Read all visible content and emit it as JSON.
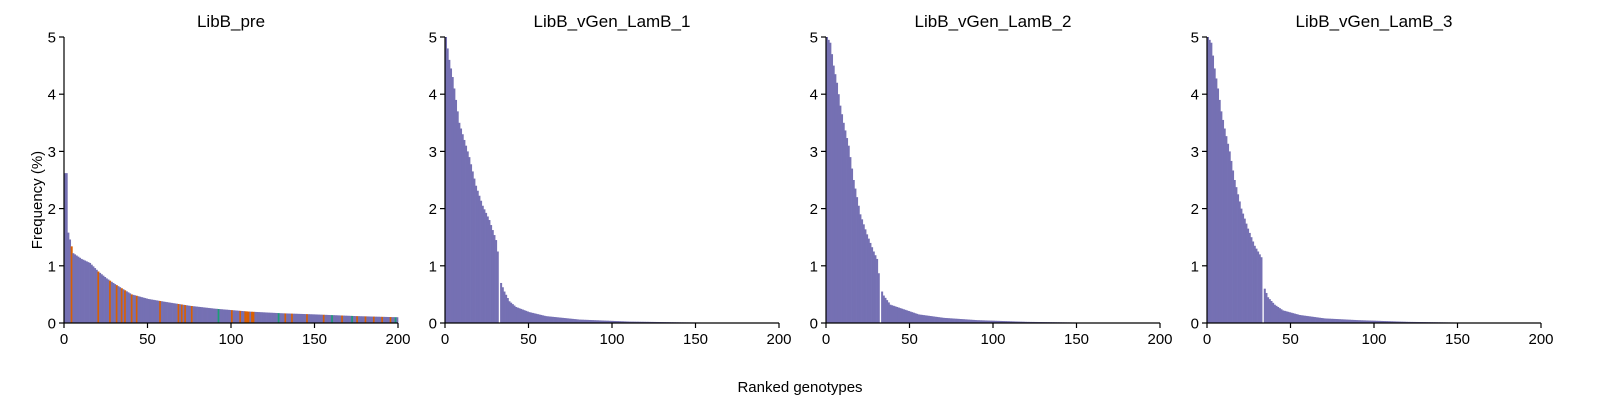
{
  "figure": {
    "xlabel": "Ranked genotypes",
    "ylabel": "Frequency (%)"
  },
  "colors": {
    "primary": "#7570b3",
    "orange": "#d95f02",
    "teal": "#1b9e77",
    "axis": "#000000"
  },
  "chart_data": [
    {
      "type": "bar",
      "title": "LibB_pre",
      "xlim": [
        0,
        200
      ],
      "ylim": [
        0,
        5
      ],
      "xticks": [
        0,
        50,
        100,
        150,
        200
      ],
      "yticks": [
        0,
        1,
        2,
        3,
        4,
        5
      ],
      "grid": false,
      "profile": [
        [
          0,
          2.62
        ],
        [
          1,
          2.62
        ],
        [
          2,
          1.58
        ],
        [
          5,
          1.22
        ],
        [
          10,
          1.12
        ],
        [
          15,
          1.05
        ],
        [
          20,
          0.9
        ],
        [
          25,
          0.78
        ],
        [
          30,
          0.68
        ],
        [
          40,
          0.5
        ],
        [
          50,
          0.42
        ],
        [
          60,
          0.37
        ],
        [
          75,
          0.3
        ],
        [
          90,
          0.25
        ],
        [
          110,
          0.2
        ],
        [
          130,
          0.17
        ],
        [
          150,
          0.15
        ],
        [
          175,
          0.12
        ],
        [
          200,
          0.1
        ]
      ],
      "highlights": [
        {
          "color": "orange",
          "ranks": [
            4,
            20,
            27,
            31,
            34,
            36,
            40,
            43,
            57,
            68,
            70,
            72,
            76,
            100,
            105,
            108,
            109,
            110,
            112,
            113,
            132,
            136,
            145,
            155,
            166,
            175,
            180,
            185,
            190,
            195
          ]
        },
        {
          "color": "teal",
          "ranks": [
            92,
            128,
            160,
            172,
            198
          ]
        }
      ]
    },
    {
      "type": "bar",
      "title": "LibB_vGen_LamB_1",
      "xlim": [
        0,
        200
      ],
      "ylim": [
        0,
        5
      ],
      "xticks": [
        0,
        50,
        100,
        150,
        200
      ],
      "yticks": [
        0,
        1,
        2,
        3,
        4,
        5
      ],
      "grid": false,
      "profile": [
        [
          0,
          5.0
        ],
        [
          2,
          4.6
        ],
        [
          4,
          4.3
        ],
        [
          6,
          3.9
        ],
        [
          8,
          3.5
        ],
        [
          10,
          3.3
        ],
        [
          14,
          2.9
        ],
        [
          18,
          2.4
        ],
        [
          22,
          2.05
        ],
        [
          26,
          1.8
        ],
        [
          30,
          1.45
        ],
        [
          32,
          1.05
        ],
        [
          33,
          0.7
        ],
        [
          35,
          0.55
        ],
        [
          38,
          0.38
        ],
        [
          42,
          0.28
        ],
        [
          50,
          0.19
        ],
        [
          60,
          0.12
        ],
        [
          80,
          0.06
        ],
        [
          110,
          0.025
        ],
        [
          140,
          0.012
        ],
        [
          156,
          0.008
        ],
        [
          157,
          0.0
        ],
        [
          200,
          0.0
        ]
      ],
      "gaps": [
        32
      ]
    },
    {
      "type": "bar",
      "title": "LibB_vGen_LamB_2",
      "xlim": [
        0,
        200
      ],
      "ylim": [
        0,
        5
      ],
      "xticks": [
        0,
        50,
        100,
        150,
        200
      ],
      "yticks": [
        0,
        1,
        2,
        3,
        4,
        5
      ],
      "grid": false,
      "profile": [
        [
          0,
          5.0
        ],
        [
          2,
          4.9
        ],
        [
          4,
          4.5
        ],
        [
          6,
          4.2
        ],
        [
          8,
          3.8
        ],
        [
          10,
          3.5
        ],
        [
          13,
          3.1
        ],
        [
          16,
          2.5
        ],
        [
          20,
          1.9
        ],
        [
          24,
          1.55
        ],
        [
          28,
          1.25
        ],
        [
          30,
          1.12
        ],
        [
          32,
          0.62
        ],
        [
          34,
          0.48
        ],
        [
          38,
          0.32
        ],
        [
          45,
          0.25
        ],
        [
          55,
          0.15
        ],
        [
          70,
          0.09
        ],
        [
          90,
          0.05
        ],
        [
          120,
          0.02
        ],
        [
          152,
          0.008
        ],
        [
          153,
          0.0
        ],
        [
          200,
          0.0
        ]
      ],
      "gaps": [
        32
      ]
    },
    {
      "type": "bar",
      "title": "LibB_vGen_LamB_3",
      "xlim": [
        0,
        200
      ],
      "ylim": [
        0,
        5
      ],
      "xticks": [
        0,
        50,
        100,
        150,
        200
      ],
      "yticks": [
        0,
        1,
        2,
        3,
        4,
        5
      ],
      "grid": false,
      "profile": [
        [
          0,
          5.0
        ],
        [
          2,
          4.9
        ],
        [
          4,
          4.45
        ],
        [
          6,
          4.1
        ],
        [
          8,
          3.7
        ],
        [
          10,
          3.4
        ],
        [
          13,
          3.0
        ],
        [
          16,
          2.5
        ],
        [
          20,
          2.0
        ],
        [
          24,
          1.65
        ],
        [
          28,
          1.35
        ],
        [
          32,
          1.15
        ],
        [
          33,
          0.95
        ],
        [
          34,
          0.6
        ],
        [
          36,
          0.45
        ],
        [
          40,
          0.32
        ],
        [
          45,
          0.22
        ],
        [
          55,
          0.14
        ],
        [
          70,
          0.08
        ],
        [
          90,
          0.05
        ],
        [
          120,
          0.02
        ],
        [
          150,
          0.008
        ],
        [
          151,
          0.0
        ],
        [
          200,
          0.0
        ]
      ],
      "gaps": [
        33
      ]
    }
  ]
}
